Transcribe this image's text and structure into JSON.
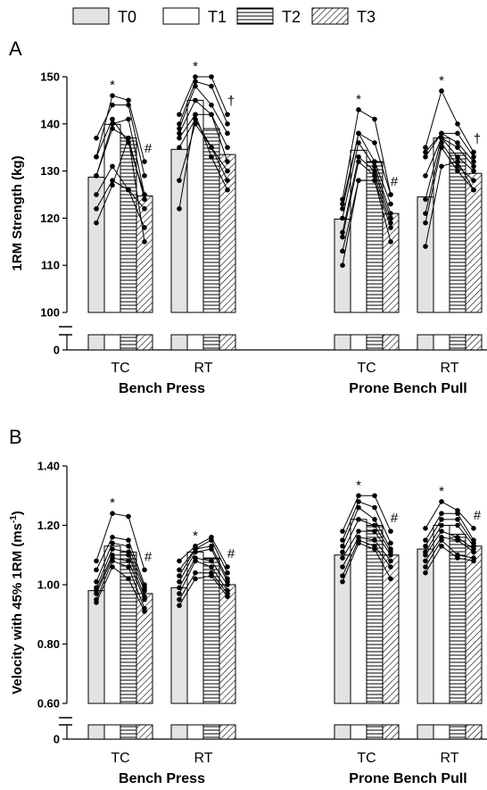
{
  "legend": [
    {
      "key": "T0",
      "label": "T0",
      "fill": "#e3e3e3"
    },
    {
      "key": "T1",
      "label": "T1",
      "fill": "#ffffff"
    },
    {
      "key": "T2",
      "label": "T2",
      "fill": "hstripe"
    },
    {
      "key": "T3",
      "label": "T3",
      "fill": "diag"
    }
  ],
  "chart_data": [
    {
      "type": "bar",
      "panel_label": "A",
      "ylabel": "1RM  Strength (kg)",
      "ylim": [
        100,
        150
      ],
      "yticks": [
        "100",
        "110",
        "120",
        "130",
        "140",
        "150"
      ],
      "zero_tick": "0",
      "groups": [
        {
          "section": "Bench Press",
          "label": "TC",
          "means": [
            128.7,
            139.9,
            137.0,
            124.7
          ],
          "annotations": [
            {
              "bar": 1,
              "text": "*"
            },
            {
              "bar": 3,
              "text": "#"
            }
          ],
          "individuals": [
            [
              137,
              144,
              144,
              129
            ],
            [
              133,
              146,
              145,
              132
            ],
            [
              133,
              141,
              136,
              125
            ],
            [
              129,
              140,
              141,
              125
            ],
            [
              129,
              139,
              137,
              124
            ],
            [
              125,
              131,
              126,
              122
            ],
            [
              122,
              128,
              126,
              118
            ],
            [
              119,
              127,
              137,
              115
            ]
          ]
        },
        {
          "section": "Bench Press",
          "label": "RT",
          "means": [
            134.6,
            145.0,
            139.0,
            133.5
          ],
          "annotations": [
            {
              "bar": 1,
              "text": "*"
            },
            {
              "bar": 3,
              "text": "†"
            }
          ],
          "individuals": [
            [
              142,
              150,
              150,
              142
            ],
            [
              140,
              149,
              148,
              140
            ],
            [
              139,
              148,
              144,
              138
            ],
            [
              138,
              145,
              142,
              135
            ],
            [
              137,
              142,
              142,
              132
            ],
            [
              135,
              141,
              135,
              130
            ],
            [
              128,
              140,
              135,
              128
            ],
            [
              122,
              142,
              133,
              126
            ]
          ]
        },
        {
          "section": "Prone Bench Pull",
          "label": "TC",
          "means": [
            119.8,
            134.4,
            132.0,
            121.0
          ],
          "annotations": [
            {
              "bar": 1,
              "text": "*"
            },
            {
              "bar": 3,
              "text": "#"
            }
          ],
          "individuals": [
            [
              124,
              143,
              141,
              125
            ],
            [
              123,
              138,
              136,
              125
            ],
            [
              122,
              138,
              132,
              123
            ],
            [
              120,
              136,
              131,
              121
            ],
            [
              117,
              133,
              130,
              120
            ],
            [
              116,
              132,
              129,
              119
            ],
            [
              113,
              128,
              128,
              118
            ],
            [
              110,
              128,
              128,
              115
            ]
          ]
        },
        {
          "section": "Prone Bench Pull",
          "label": "RT",
          "means": [
            124.5,
            137.0,
            133.8,
            129.5
          ],
          "annotations": [
            {
              "bar": 1,
              "text": "*"
            },
            {
              "bar": 3,
              "text": "†"
            }
          ],
          "individuals": [
            [
              135,
              147,
              140,
              134
            ],
            [
              134,
              138,
              138,
              133
            ],
            [
              133,
              138,
              136,
              132
            ],
            [
              129,
              137,
              135,
              131
            ],
            [
              124,
              137,
              133,
              130
            ],
            [
              121,
              136,
              131,
              128
            ],
            [
              119,
              135,
              130,
              126
            ],
            [
              114,
              131,
              132,
              126
            ]
          ]
        }
      ],
      "sections": [
        "Bench Press",
        "Prone Bench Pull"
      ]
    },
    {
      "type": "bar",
      "panel_label": "B",
      "ylabel": "Velocity with 45% 1RM (ms",
      "ylabel_sup": "-1",
      "ylabel_end": ")",
      "ylim": [
        0.6,
        1.4
      ],
      "yticks": [
        "0.60",
        "0.80",
        "1.00",
        "1.20",
        "1.40"
      ],
      "zero_tick": "0",
      "groups": [
        {
          "section": "Bench Press",
          "label": "TC",
          "means": [
            0.98,
            1.13,
            1.11,
            0.97
          ],
          "annotations": [
            {
              "bar": 1,
              "text": "*"
            },
            {
              "bar": 3,
              "text": "#"
            }
          ],
          "individuals": [
            [
              1.08,
              1.24,
              1.23,
              1.05
            ],
            [
              1.05,
              1.16,
              1.15,
              1.0
            ],
            [
              1.01,
              1.14,
              1.13,
              0.99
            ],
            [
              0.99,
              1.12,
              1.11,
              0.98
            ],
            [
              0.98,
              1.1,
              1.1,
              0.96
            ],
            [
              0.97,
              1.09,
              1.08,
              0.95
            ],
            [
              0.95,
              1.08,
              1.06,
              0.92
            ],
            [
              0.94,
              1.06,
              1.02,
              0.91
            ]
          ]
        },
        {
          "section": "Bench Press",
          "label": "RT",
          "means": [
            0.99,
            1.11,
            1.09,
            1.0
          ],
          "annotations": [
            {
              "bar": 1,
              "text": "*"
            },
            {
              "bar": 3,
              "text": "#"
            }
          ],
          "individuals": [
            [
              1.08,
              1.13,
              1.16,
              1.06
            ],
            [
              1.05,
              1.12,
              1.15,
              1.04
            ],
            [
              1.03,
              1.12,
              1.13,
              1.02
            ],
            [
              1.01,
              1.11,
              1.12,
              1.01
            ],
            [
              0.99,
              1.09,
              1.08,
              1.0
            ],
            [
              0.97,
              1.08,
              1.06,
              0.98
            ],
            [
              0.95,
              1.04,
              1.04,
              0.97
            ],
            [
              0.93,
              1.02,
              1.03,
              0.96
            ]
          ]
        },
        {
          "section": "Prone Bench Pull",
          "label": "TC",
          "means": [
            1.1,
            1.22,
            1.2,
            1.1
          ],
          "annotations": [
            {
              "bar": 1,
              "text": "*"
            },
            {
              "bar": 3,
              "text": "#"
            }
          ],
          "individuals": [
            [
              1.18,
              1.3,
              1.3,
              1.18
            ],
            [
              1.15,
              1.28,
              1.26,
              1.14
            ],
            [
              1.13,
              1.26,
              1.22,
              1.12
            ],
            [
              1.11,
              1.22,
              1.2,
              1.11
            ],
            [
              1.09,
              1.18,
              1.18,
              1.1
            ],
            [
              1.06,
              1.16,
              1.15,
              1.08
            ],
            [
              1.03,
              1.15,
              1.13,
              1.06
            ],
            [
              1.01,
              1.14,
              1.12,
              1.02
            ]
          ]
        },
        {
          "section": "Prone Bench Pull",
          "label": "RT",
          "means": [
            1.12,
            1.2,
            1.17,
            1.13
          ],
          "annotations": [
            {
              "bar": 1,
              "text": "*"
            },
            {
              "bar": 3,
              "text": "#"
            }
          ],
          "individuals": [
            [
              1.19,
              1.28,
              1.25,
              1.19
            ],
            [
              1.15,
              1.24,
              1.24,
              1.15
            ],
            [
              1.13,
              1.22,
              1.22,
              1.14
            ],
            [
              1.11,
              1.2,
              1.2,
              1.13
            ],
            [
              1.1,
              1.18,
              1.16,
              1.12
            ],
            [
              1.08,
              1.16,
              1.15,
              1.11
            ],
            [
              1.06,
              1.15,
              1.1,
              1.09
            ],
            [
              1.04,
              1.13,
              1.09,
              1.08
            ]
          ]
        }
      ],
      "sections": [
        "Bench Press",
        "Prone Bench Pull"
      ]
    }
  ]
}
